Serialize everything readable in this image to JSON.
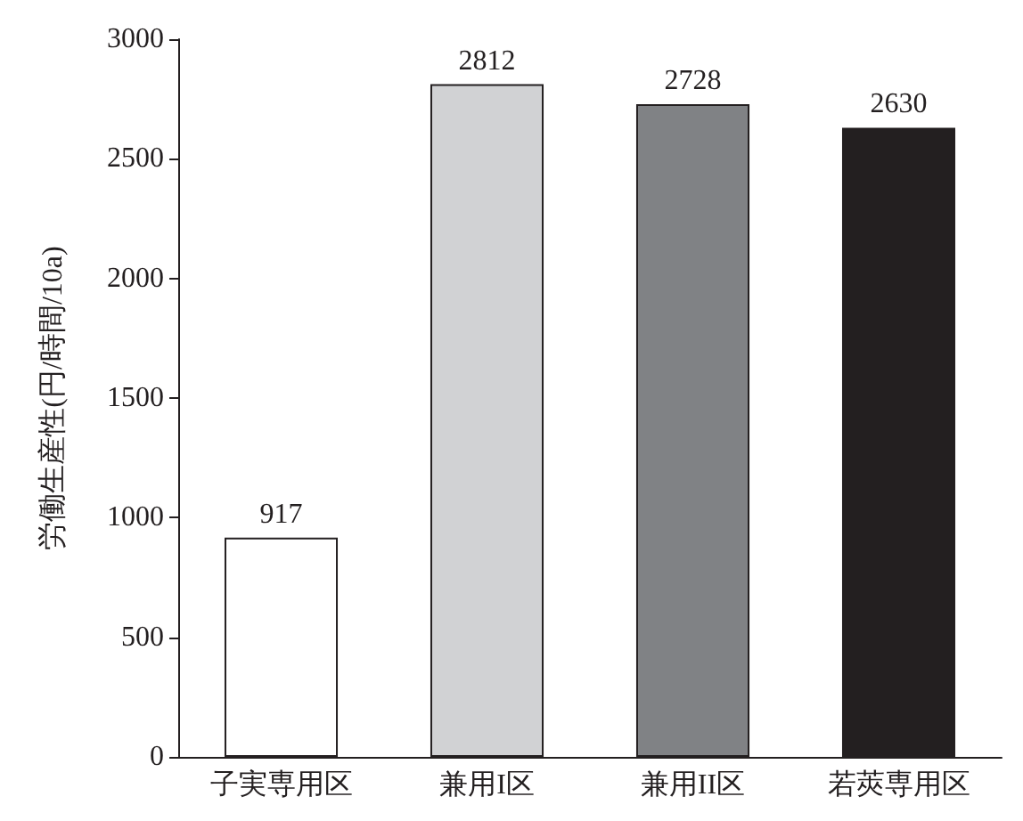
{
  "chart_data": {
    "type": "bar",
    "ylabel": "労働生産性(円/時間/10a)",
    "categories": [
      "子実専用区",
      "兼用I区",
      "兼用II区",
      "若莢専用区"
    ],
    "values": [
      917,
      2812,
      2728,
      2630
    ],
    "colors": [
      "#ffffff",
      "#d1d2d4",
      "#808285",
      "#231f20"
    ],
    "ylim": [
      0,
      3000
    ],
    "yticks": [
      0,
      500,
      1000,
      1500,
      2000,
      2500,
      3000
    ],
    "grid": false,
    "data_labels": true
  }
}
